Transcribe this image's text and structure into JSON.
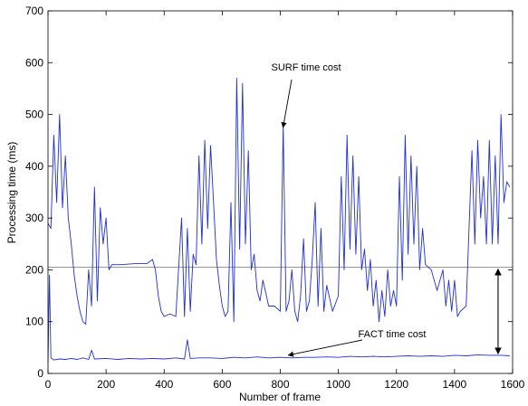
{
  "chart_data": {
    "type": "line",
    "title": "",
    "xlabel": "Number of frame",
    "ylabel": "Processing time (ms)",
    "xlim": [
      0,
      1600
    ],
    "ylim": [
      0,
      700
    ],
    "xticks": [
      "0",
      "200",
      "400",
      "600",
      "800",
      "1000",
      "1200",
      "1400",
      "1600"
    ],
    "yticks": [
      "0",
      "100",
      "200",
      "300",
      "400",
      "500",
      "600",
      "700"
    ],
    "grid": false,
    "colors": {
      "series": "#1f2fd6",
      "reference": "#888888",
      "frame": "#000000"
    },
    "reference_line": {
      "y": 205
    },
    "series": [
      {
        "values": [
          [
            0,
            290
          ],
          [
            10,
            280
          ],
          [
            20,
            460
          ],
          [
            30,
            330
          ],
          [
            40,
            500
          ],
          [
            50,
            320
          ],
          [
            60,
            420
          ],
          [
            70,
            300
          ],
          [
            80,
            250
          ],
          [
            90,
            190
          ],
          [
            100,
            150
          ],
          [
            110,
            120
          ],
          [
            120,
            100
          ],
          [
            130,
            95
          ],
          [
            140,
            200
          ],
          [
            150,
            130
          ],
          [
            160,
            360
          ],
          [
            170,
            140
          ],
          [
            180,
            320
          ],
          [
            190,
            250
          ],
          [
            200,
            300
          ],
          [
            210,
            200
          ],
          [
            220,
            210
          ],
          [
            250,
            210
          ],
          [
            300,
            212
          ],
          [
            340,
            212
          ],
          [
            360,
            220
          ],
          [
            370,
            200
          ],
          [
            380,
            150
          ],
          [
            390,
            120
          ],
          [
            400,
            110
          ],
          [
            420,
            115
          ],
          [
            440,
            110
          ],
          [
            460,
            300
          ],
          [
            470,
            110
          ],
          [
            480,
            280
          ],
          [
            490,
            120
          ],
          [
            500,
            230
          ],
          [
            510,
            210
          ],
          [
            520,
            420
          ],
          [
            530,
            250
          ],
          [
            540,
            450
          ],
          [
            550,
            280
          ],
          [
            560,
            440
          ],
          [
            570,
            330
          ],
          [
            580,
            220
          ],
          [
            590,
            170
          ],
          [
            600,
            130
          ],
          [
            610,
            110
          ],
          [
            620,
            120
          ],
          [
            630,
            330
          ],
          [
            640,
            100
          ],
          [
            650,
            570
          ],
          [
            660,
            240
          ],
          [
            670,
            560
          ],
          [
            680,
            250
          ],
          [
            690,
            430
          ],
          [
            700,
            200
          ],
          [
            710,
            230
          ],
          [
            720,
            160
          ],
          [
            730,
            140
          ],
          [
            740,
            180
          ],
          [
            760,
            130
          ],
          [
            780,
            130
          ],
          [
            800,
            120
          ],
          [
            810,
            480
          ],
          [
            820,
            120
          ],
          [
            830,
            140
          ],
          [
            840,
            200
          ],
          [
            850,
            120
          ],
          [
            860,
            100
          ],
          [
            870,
            150
          ],
          [
            880,
            260
          ],
          [
            890,
            120
          ],
          [
            900,
            140
          ],
          [
            910,
            220
          ],
          [
            920,
            330
          ],
          [
            930,
            130
          ],
          [
            940,
            280
          ],
          [
            950,
            120
          ],
          [
            960,
            170
          ],
          [
            980,
            120
          ],
          [
            1000,
            150
          ],
          [
            1010,
            380
          ],
          [
            1020,
            200
          ],
          [
            1030,
            460
          ],
          [
            1040,
            240
          ],
          [
            1050,
            420
          ],
          [
            1060,
            230
          ],
          [
            1070,
            380
          ],
          [
            1080,
            200
          ],
          [
            1090,
            240
          ],
          [
            1100,
            160
          ],
          [
            1110,
            220
          ],
          [
            1120,
            130
          ],
          [
            1130,
            180
          ],
          [
            1140,
            100
          ],
          [
            1150,
            160
          ],
          [
            1160,
            110
          ],
          [
            1170,
            200
          ],
          [
            1180,
            130
          ],
          [
            1190,
            160
          ],
          [
            1200,
            130
          ],
          [
            1210,
            380
          ],
          [
            1220,
            180
          ],
          [
            1230,
            460
          ],
          [
            1240,
            230
          ],
          [
            1250,
            420
          ],
          [
            1260,
            250
          ],
          [
            1270,
            400
          ],
          [
            1280,
            200
          ],
          [
            1290,
            280
          ],
          [
            1300,
            210
          ],
          [
            1320,
            200
          ],
          [
            1340,
            160
          ],
          [
            1360,
            200
          ],
          [
            1370,
            130
          ],
          [
            1380,
            180
          ],
          [
            1390,
            120
          ],
          [
            1400,
            180
          ],
          [
            1410,
            110
          ],
          [
            1420,
            120
          ],
          [
            1440,
            130
          ],
          [
            1460,
            430
          ],
          [
            1470,
            250
          ],
          [
            1480,
            450
          ],
          [
            1490,
            300
          ],
          [
            1500,
            380
          ],
          [
            1510,
            250
          ],
          [
            1520,
            450
          ],
          [
            1530,
            250
          ],
          [
            1540,
            420
          ],
          [
            1550,
            250
          ],
          [
            1560,
            500
          ],
          [
            1570,
            330
          ],
          [
            1580,
            370
          ],
          [
            1590,
            360
          ]
        ]
      },
      {
        "values": [
          [
            0,
            20
          ],
          [
            5,
            190
          ],
          [
            10,
            30
          ],
          [
            20,
            26
          ],
          [
            40,
            28
          ],
          [
            60,
            27
          ],
          [
            80,
            29
          ],
          [
            100,
            27
          ],
          [
            120,
            30
          ],
          [
            140,
            27
          ],
          [
            150,
            45
          ],
          [
            160,
            28
          ],
          [
            200,
            29
          ],
          [
            240,
            27
          ],
          [
            280,
            29
          ],
          [
            320,
            28
          ],
          [
            360,
            29
          ],
          [
            400,
            28
          ],
          [
            440,
            30
          ],
          [
            470,
            28
          ],
          [
            480,
            65
          ],
          [
            490,
            29
          ],
          [
            520,
            30
          ],
          [
            560,
            30
          ],
          [
            600,
            29
          ],
          [
            640,
            31
          ],
          [
            680,
            30
          ],
          [
            720,
            32
          ],
          [
            760,
            30
          ],
          [
            800,
            31
          ],
          [
            840,
            30
          ],
          [
            880,
            31
          ],
          [
            920,
            31
          ],
          [
            960,
            32
          ],
          [
            1000,
            31
          ],
          [
            1040,
            33
          ],
          [
            1080,
            32
          ],
          [
            1120,
            33
          ],
          [
            1160,
            32
          ],
          [
            1200,
            33
          ],
          [
            1240,
            34
          ],
          [
            1280,
            33
          ],
          [
            1320,
            34
          ],
          [
            1360,
            33
          ],
          [
            1400,
            35
          ],
          [
            1440,
            34
          ],
          [
            1480,
            36
          ],
          [
            1520,
            35
          ],
          [
            1560,
            35
          ],
          [
            1590,
            34
          ]
        ]
      }
    ],
    "annotations": [
      {
        "text": "SURF time cost",
        "target": [
          800,
          480
        ]
      },
      {
        "text": "FACT time cost",
        "target": [
          840,
          30
        ]
      }
    ]
  }
}
